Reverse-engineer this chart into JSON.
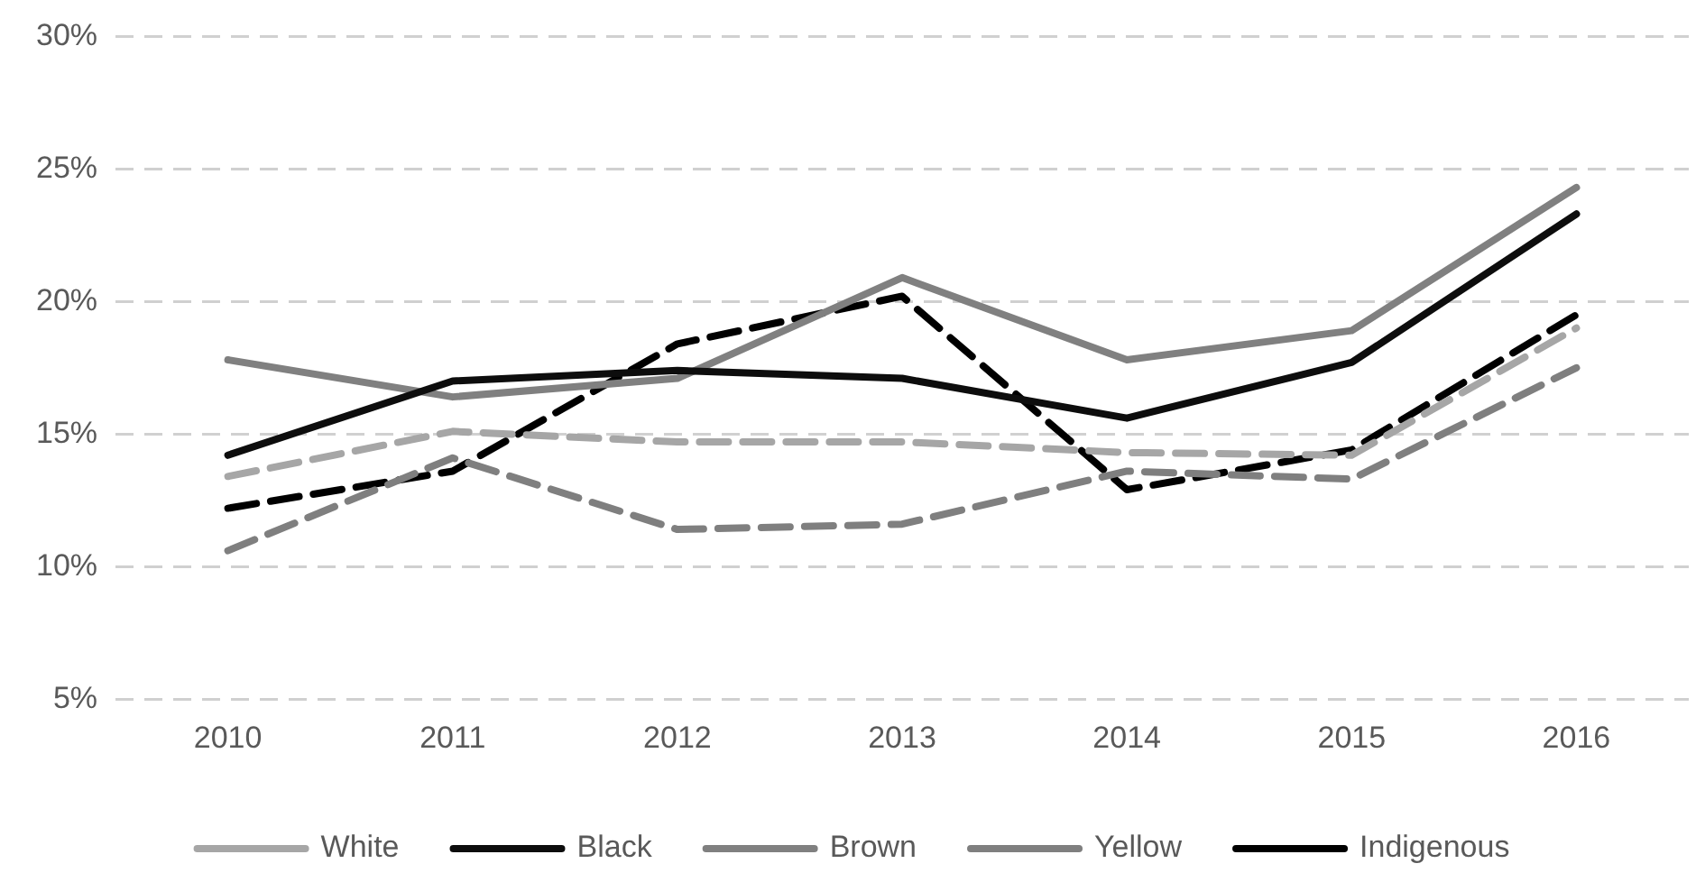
{
  "chart_data": {
    "type": "line",
    "categories": [
      "2010",
      "2011",
      "2012",
      "2013",
      "2014",
      "2015",
      "2016"
    ],
    "series": [
      {
        "name": "White",
        "color": "#a6a6a6",
        "line_style": "dashed",
        "values": [
          13.4,
          15.1,
          14.7,
          14.7,
          14.3,
          14.2,
          19.0
        ]
      },
      {
        "name": "Black",
        "color": "#0d0d0d",
        "line_style": "solid",
        "values": [
          14.2,
          17.0,
          17.4,
          17.1,
          15.6,
          17.7,
          23.3
        ]
      },
      {
        "name": "Brown",
        "color": "#808080",
        "line_style": "solid",
        "values": [
          17.8,
          16.4,
          17.1,
          20.9,
          17.8,
          18.9,
          24.3
        ]
      },
      {
        "name": "Yellow",
        "color": "#7f7f7f",
        "line_style": "dashed",
        "values": [
          10.6,
          14.1,
          11.4,
          11.6,
          13.6,
          13.3,
          17.5
        ]
      },
      {
        "name": "Indigenous",
        "color": "#000000",
        "line_style": "dashed",
        "values": [
          12.2,
          13.6,
          18.4,
          20.2,
          12.9,
          14.4,
          19.5
        ]
      }
    ],
    "ylim": [
      5,
      30
    ],
    "yticks": [
      {
        "value": 5,
        "label": "5%"
      },
      {
        "value": 10,
        "label": "10%"
      },
      {
        "value": 15,
        "label": "15%"
      },
      {
        "value": 20,
        "label": "20%"
      },
      {
        "value": 25,
        "label": "25%"
      },
      {
        "value": 30,
        "label": "30%"
      }
    ],
    "grid": "y",
    "legend": "bottom",
    "marker": "none"
  }
}
